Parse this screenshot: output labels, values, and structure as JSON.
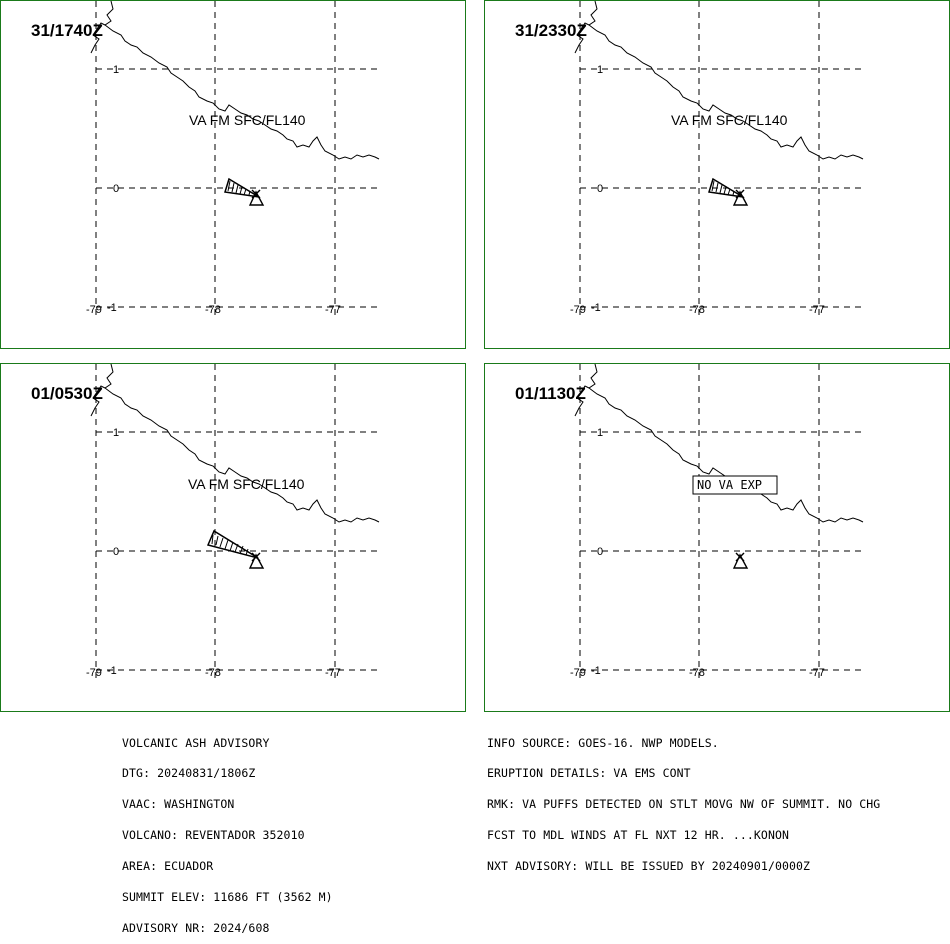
{
  "panels": [
    {
      "time": "31/1740Z",
      "ash_label": "VA FM SFC/FL140",
      "ash": "small"
    },
    {
      "time": "31/2330Z",
      "ash_label": "VA FM SFC/FL140",
      "ash": "small"
    },
    {
      "time": "01/0530Z",
      "ash_label": "VA FM SFC/FL140",
      "ash": "large"
    },
    {
      "time": "01/1130Z",
      "ash_label": "NO VA EXP",
      "ash": "none"
    }
  ],
  "axes": {
    "lat_labels": [
      "1",
      "0",
      "-1"
    ],
    "lon_labels": [
      "-79",
      "-78",
      "-77"
    ]
  },
  "advisory_left": [
    "VOLCANIC ASH ADVISORY",
    "DTG: 20240831/1806Z",
    "VAAC: WASHINGTON",
    "VOLCANO: REVENTADOR 352010",
    "AREA: ECUADOR",
    "SUMMIT ELEV: 11686 FT (3562 M)",
    "ADVISORY NR: 2024/608"
  ],
  "advisory_right": [
    "INFO SOURCE: GOES-16. NWP MODELS.",
    "ERUPTION DETAILS: VA EMS CONT",
    "RMK: VA PUFFS DETECTED ON STLT MOVG NW OF SUMMIT. NO CHG",
    "FCST TO MDL WINDS AT FL NXT 12 HR. ...KONON",
    "NXT ADVISORY: WILL BE ISSUED BY 20240901/0000Z"
  ],
  "colors": {
    "frame": "#1a7a1a",
    "ink": "#000000"
  }
}
